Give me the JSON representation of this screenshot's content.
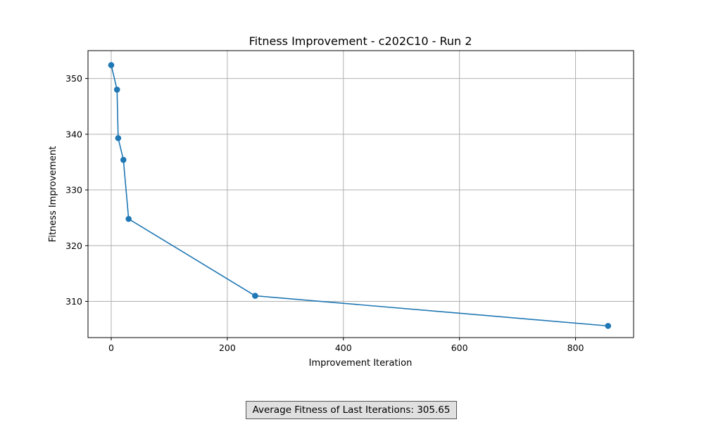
{
  "chart_data": {
    "type": "line",
    "title": "Fitness Improvement - c202C10 - Run 2",
    "xlabel": "Improvement Iteration",
    "ylabel": "Fitness Improvement",
    "xlim": [
      -40,
      900
    ],
    "ylim": [
      303.5,
      355
    ],
    "x_ticks": [
      0,
      200,
      400,
      600,
      800
    ],
    "y_ticks": [
      310,
      320,
      330,
      340,
      350
    ],
    "grid": true,
    "colors": {
      "series": "#1f77b4"
    },
    "series": [
      {
        "x": [
          0,
          10,
          12,
          21,
          30,
          248,
          856
        ],
        "y": [
          352.4,
          348.0,
          339.3,
          335.4,
          324.8,
          311.0,
          305.6
        ]
      }
    ]
  },
  "summary": {
    "label": "Average Fitness of Last Iterations: 305.65"
  }
}
